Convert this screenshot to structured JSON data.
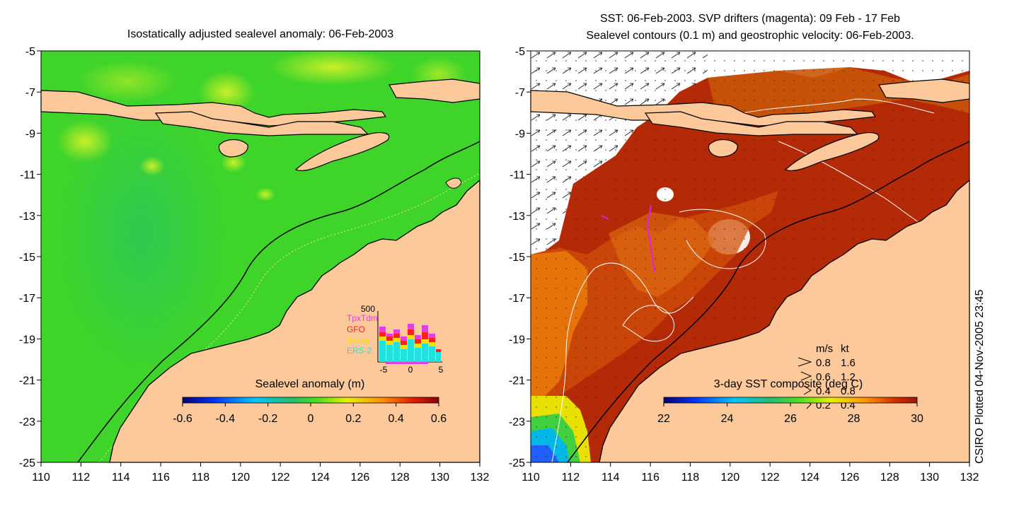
{
  "left_panel": {
    "title": "Isostatically adjusted sealevel anomaly: 06-Feb-2003",
    "colorbar": {
      "label": "Sealevel anomaly (m)",
      "ticks": [
        "-0.6",
        "-0.4",
        "-0.2",
        "0",
        "0.2",
        "0.4",
        "0.6"
      ]
    },
    "inset": {
      "ymax_label": "500",
      "xticks": [
        "-5",
        "0",
        "5"
      ],
      "legend": [
        {
          "name": "TpxTdm",
          "color": "#e040e0"
        },
        {
          "name": "GFO",
          "color": "#ff2020"
        },
        {
          "name": "Jason",
          "color": "#f0e000"
        },
        {
          "name": "ERS-2",
          "color": "#20e0e0"
        }
      ]
    }
  },
  "right_panel": {
    "title_line1": "SST: 06-Feb-2003. SVP drifters (magenta): 09 Feb - 17 Feb",
    "title_line2": "Sealevel contours (0.1 m) and geostrophic velocity: 06-Feb-2003.",
    "colorbar": {
      "label": "3-day SST composite (deg C)",
      "ticks": [
        "22",
        "24",
        "26",
        "28",
        "30"
      ]
    },
    "velocity_legend": {
      "header_ms": "m/s",
      "header_kt": "kt",
      "rows": [
        {
          "ms": "0.8",
          "kt": "1.6"
        },
        {
          "ms": "0.6",
          "kt": "1.2"
        },
        {
          "ms": "0.4",
          "kt": "0.8"
        },
        {
          "ms": "0.2",
          "kt": "0.4"
        }
      ]
    }
  },
  "axes": {
    "y_ticks": [
      "-5",
      "-7",
      "-9",
      "-11",
      "-13",
      "-15",
      "-17",
      "-19",
      "-21",
      "-23",
      "-25"
    ],
    "x_ticks": [
      "110",
      "112",
      "114",
      "116",
      "118",
      "120",
      "122",
      "124",
      "126",
      "128",
      "130",
      "132"
    ]
  },
  "credit": "CSIRO Plotted 04-Nov-2005 23:45",
  "colors": {
    "land": "#fdc99a",
    "ocean_green": "#3ed42a",
    "sst_hot": "#b52a06",
    "sst_orange": "#e8780a"
  }
}
